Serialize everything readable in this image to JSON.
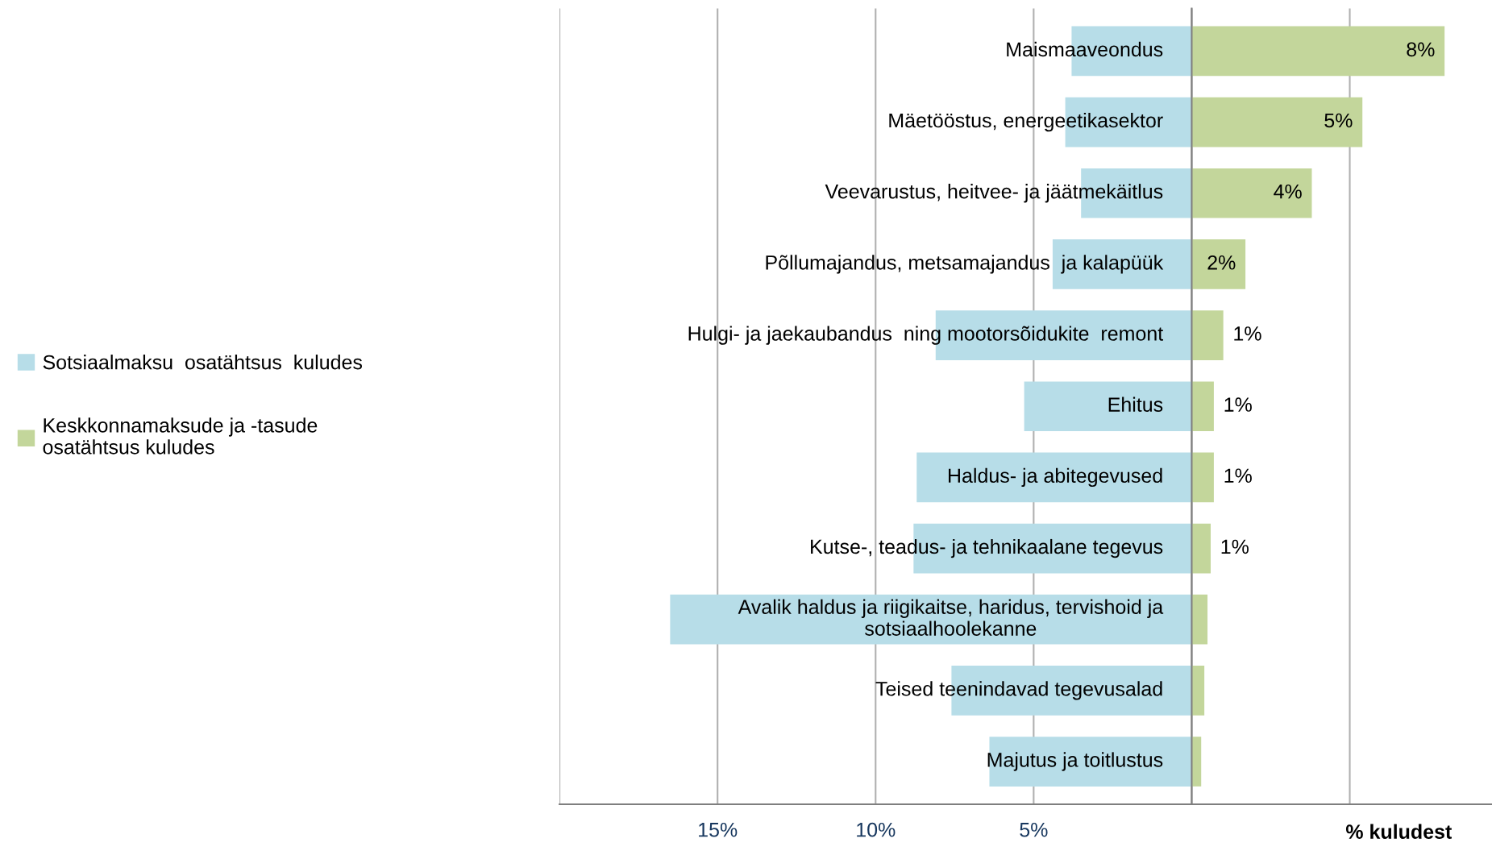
{
  "chart_data": {
    "type": "bar",
    "orientation": "horizontal",
    "stacked": true,
    "xlabel": "% kuludest",
    "categories": [
      "Maismaaveondus",
      "Mäetööstus, energeetikasektor",
      "Veevarustus, heitvee- ja jäätmekäitlus",
      "Põllumajandus, metsamajandus  ja kalapüük",
      "Hulgi- ja jaekaubandus  ning mootorsõidukite  remont",
      "Ehitus",
      "Haldus- ja abitegevused",
      "Kutse-, teadus- ja tehnikaalane tegevus",
      "Avalik haldus ja riigikaitse, haridus, tervishoid ja sotsiaalhoolekanne",
      "Teised teenindavad tegevusalad",
      "Majutus ja toitlustus"
    ],
    "series": [
      {
        "name": "Sotsiaalmaksu  osatähtsus  kuludes",
        "color": "#b7dde8",
        "values": [
          -3.8,
          -4.0,
          -3.5,
          -4.4,
          -8.1,
          -5.3,
          -8.7,
          -8.8,
          -16.5,
          -7.6,
          -6.4
        ]
      },
      {
        "name": "Keskkonnamaksude ja -tasude osatähtsus kuludes",
        "color": "#c3d69b",
        "values": [
          8.0,
          5.4,
          3.8,
          1.7,
          1.0,
          0.7,
          0.7,
          0.6,
          0.5,
          0.4,
          0.3
        ],
        "value_labels": [
          "8%",
          "5%",
          "4%",
          "2%",
          "1%",
          "1%",
          "1%",
          "1%",
          null,
          null,
          null
        ]
      }
    ],
    "xlim": [
      -20,
      9.5
    ],
    "xticks": [
      {
        "value": -20,
        "label": null
      },
      {
        "value": -15,
        "label": "15%"
      },
      {
        "value": -10,
        "label": "10%"
      },
      {
        "value": -5,
        "label": "5%"
      },
      {
        "value": 0,
        "label": null
      },
      {
        "value": 5,
        "label": null
      }
    ],
    "grid": "x",
    "legend": "left"
  }
}
